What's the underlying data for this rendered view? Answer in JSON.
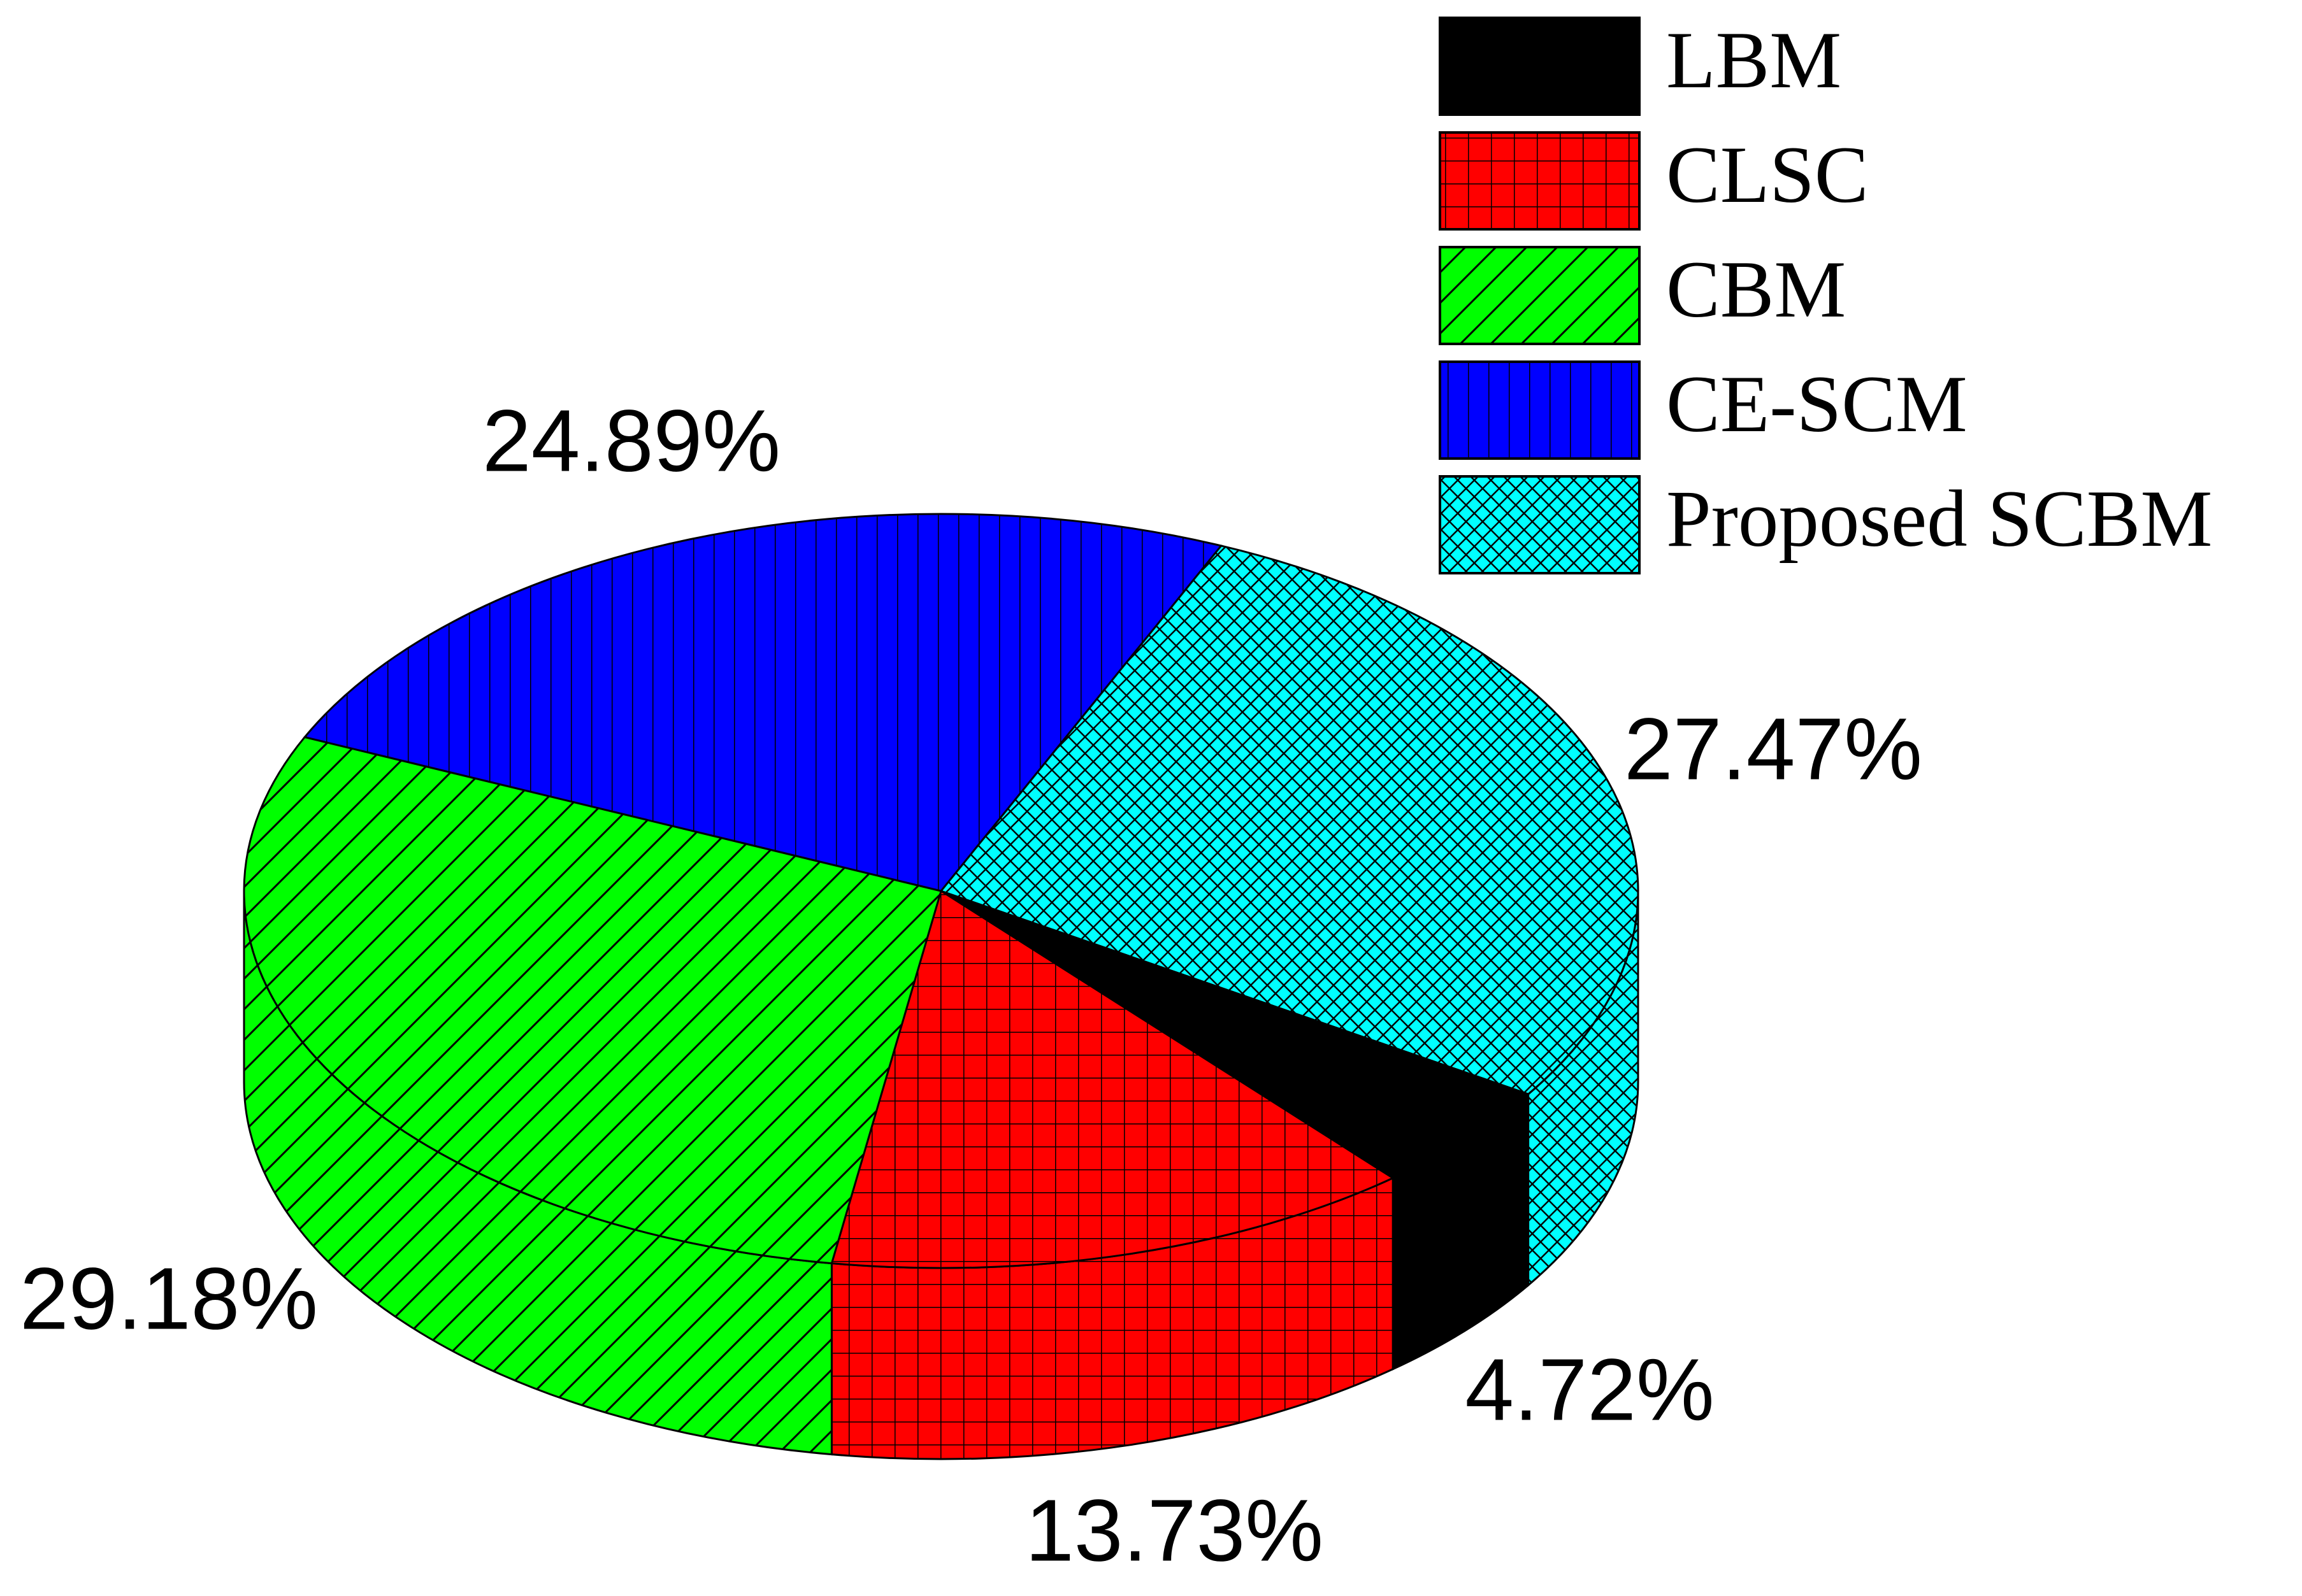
{
  "chart_data": {
    "type": "pie",
    "categories": [
      "LBM",
      "CLSC",
      "CBM",
      "CE-SCM",
      "Proposed SCBM"
    ],
    "values": [
      4.72,
      13.73,
      29.18,
      24.89,
      27.47
    ],
    "value_labels": [
      "4.72%",
      "13.73%",
      "29.18%",
      "24.89%",
      "27.47%"
    ],
    "colors": [
      "#000000",
      "#ff0000",
      "#00ff00",
      "#0000ff",
      "#00ffff"
    ]
  }
}
